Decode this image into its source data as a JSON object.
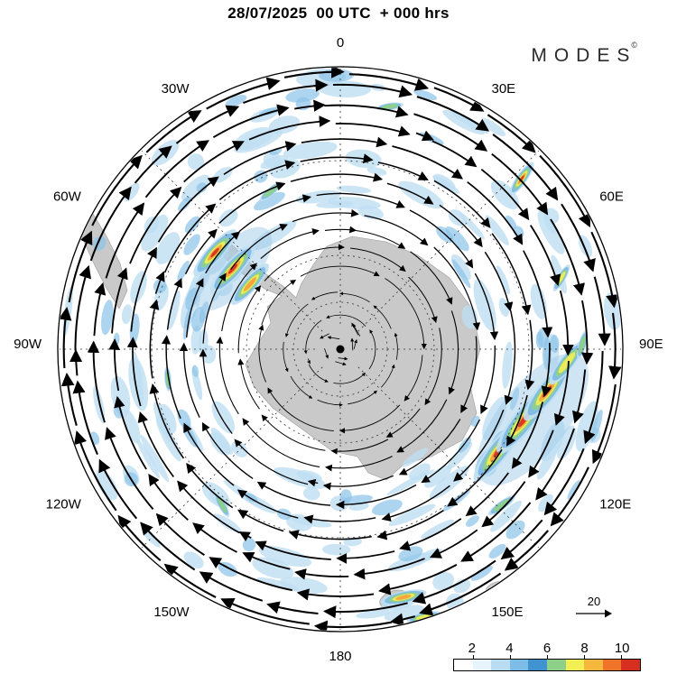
{
  "header": {
    "title": "28/07/2025  00 UTC  + 000 hrs"
  },
  "brand": {
    "name": "MODES",
    "mark": "©"
  },
  "map": {
    "longitude_labels": [
      {
        "text": "0",
        "azimuth": 0
      },
      {
        "text": "30E",
        "azimuth": 30
      },
      {
        "text": "60E",
        "azimuth": 60
      },
      {
        "text": "90E",
        "azimuth": 90
      },
      {
        "text": "120E",
        "azimuth": 120
      },
      {
        "text": "150E",
        "azimuth": 150
      },
      {
        "text": "180",
        "azimuth": 180
      },
      {
        "text": "150W",
        "azimuth": 210
      },
      {
        "text": "120W",
        "azimuth": 240
      },
      {
        "text": "90W",
        "azimuth": 270
      },
      {
        "text": "60W",
        "azimuth": 300
      },
      {
        "text": "30W",
        "azimuth": 330
      }
    ],
    "land_color": "#c9c9c9",
    "vector_color": "#000000"
  },
  "legend": {
    "reference_value": "20",
    "colorbar": {
      "tick_labels": [
        "2",
        "4",
        "6",
        "8",
        "10"
      ],
      "segment_colors": [
        "#ffffff",
        "#e8f4fb",
        "#b9dcf2",
        "#7cbce6",
        "#3f93d0",
        "#8ed08a",
        "#f2ee54",
        "#f6b83c",
        "#ef7328",
        "#d62f1f"
      ]
    }
  },
  "chart_data": {
    "type": "heatmap",
    "subtype": "south-polar-stereographic map with wind vector streamlines and shaded scalar field",
    "title": "28/07/2025 00 UTC + 000 hrs",
    "hemisphere": "southern",
    "center": "South Pole (Antarctica shown in gray)",
    "longitude_ticks": [
      "0",
      "30E",
      "60E",
      "90E",
      "120E",
      "150E",
      "180",
      "150W",
      "120W",
      "90W",
      "60W",
      "30W"
    ],
    "colorbar": {
      "ticks": [
        2,
        4,
        6,
        8,
        10
      ],
      "orientation": "horizontal",
      "position": "bottom-right"
    },
    "reference_vector": 20,
    "flow": {
      "outer_rings": "clockwise (eastward/westerly) circumpolar vector rings",
      "near_pole": "weak counterclockwise (easterly) arrows around the pole"
    },
    "high_value_regions": [
      {
        "location": "mid-latitudes near 30W-40W (upper-left streaks)",
        "peak": ">10"
      },
      {
        "location": "mid-latitudes near 90E-100E (right side streaks)",
        "peak": ">10"
      },
      {
        "location": "subtropics near 50E (upper-right)",
        "peak": ">10"
      },
      {
        "location": "near 175E (bottom center)",
        "peak": "8-10"
      }
    ],
    "background_field": "scattered light-blue patches (values 2-4) in a ring between roughly 30S and 75S"
  }
}
